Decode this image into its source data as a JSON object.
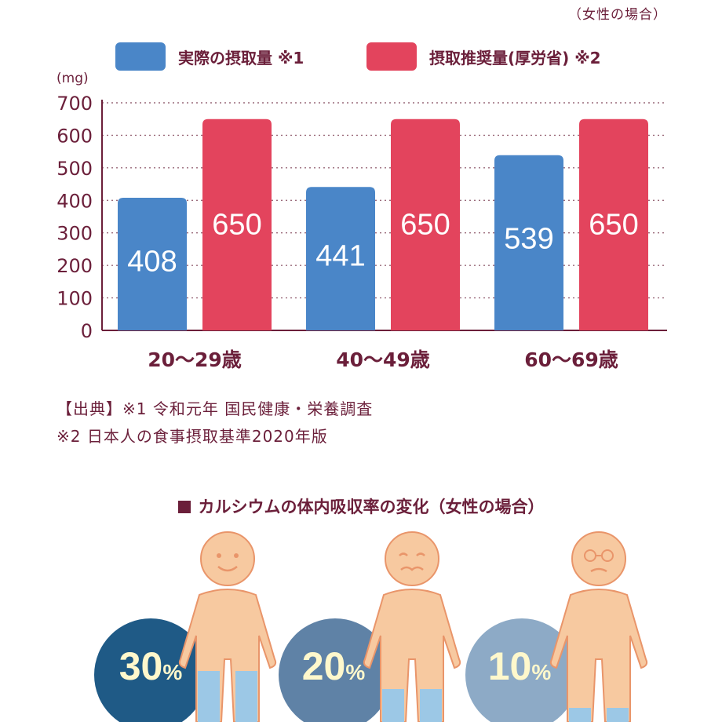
{
  "note_top": "（女性の場合）",
  "chart_data": {
    "type": "bar",
    "unit": "(mg)",
    "categories": [
      "20～29歳",
      "40～49歳",
      "60～69歳"
    ],
    "series": [
      {
        "name": "実際の摂取量 ※1",
        "color": "#4a86c8",
        "values": [
          408,
          441,
          539
        ]
      },
      {
        "name": "摂取推奨量(厚労省) ※2",
        "color": "#e3445d",
        "values": [
          650,
          650,
          650
        ]
      }
    ],
    "ylim": [
      0,
      700
    ],
    "yticks": [
      "0",
      "100",
      "200",
      "300",
      "400",
      "500",
      "600",
      "700"
    ],
    "grid": "dotted",
    "legend_position": "top"
  },
  "sources": {
    "line1": "【出典】※1 令和元年 国民健康・栄養調査",
    "line2": "※2 日本人の食事摂取基準2020年版"
  },
  "absorption": {
    "title": "カルシウムの体内吸収率の変化（女性の場合）",
    "items": [
      {
        "value": "30",
        "unit": "%",
        "color": "#1f5a86"
      },
      {
        "value": "20",
        "unit": "%",
        "color": "#5f82a6"
      },
      {
        "value": "10",
        "unit": "%",
        "color": "#8daac6"
      }
    ]
  }
}
